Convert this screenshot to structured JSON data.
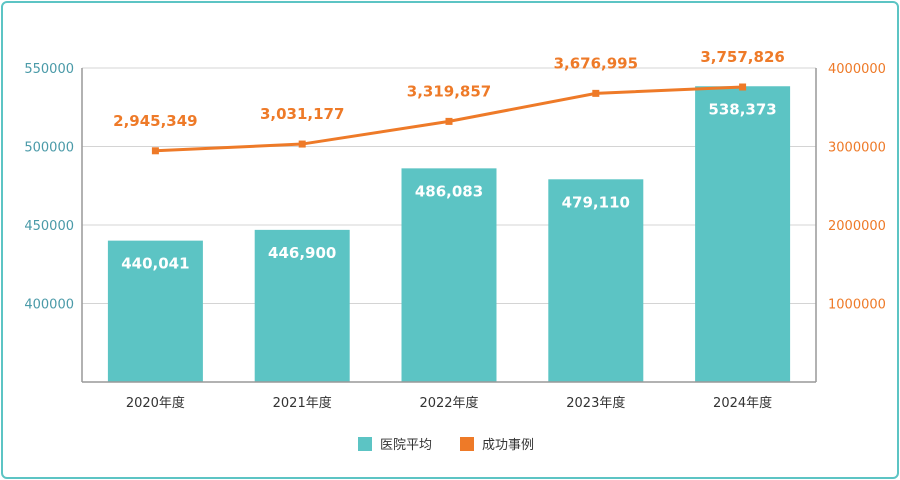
{
  "chart_data": {
    "type": "bar",
    "categories": [
      "2020年度",
      "2021年度",
      "2022年度",
      "2023年度",
      "2024年度"
    ],
    "series": [
      {
        "name": "医院平均",
        "type": "bar",
        "axis": "left",
        "values": [
          440041,
          446900,
          486083,
          479110,
          538373
        ],
        "labels": [
          "440,041",
          "446,900",
          "486,083",
          "479,110",
          "538,373"
        ],
        "color": "#5cc4c4"
      },
      {
        "name": "成功事例",
        "type": "line",
        "axis": "right",
        "values": [
          2945349,
          3031177,
          3319857,
          3676995,
          3757826
        ],
        "labels": [
          "2,945,349",
          "3,031,177",
          "3,319,857",
          "3,676,995",
          "3,757,826"
        ],
        "color": "#ee7a28"
      }
    ],
    "y_left": {
      "min": 350000,
      "max": 550000,
      "ticks": [
        "400000",
        "450000",
        "500000",
        "550000"
      ],
      "tick_values": [
        400000,
        450000,
        500000,
        550000
      ]
    },
    "y_right": {
      "min": 0,
      "max": 4000000,
      "ticks": [
        "1000000",
        "2000000",
        "3000000",
        "4000000"
      ],
      "tick_values": [
        1000000,
        2000000,
        3000000,
        4000000
      ]
    },
    "grid": true,
    "legend": "bottom-center"
  }
}
